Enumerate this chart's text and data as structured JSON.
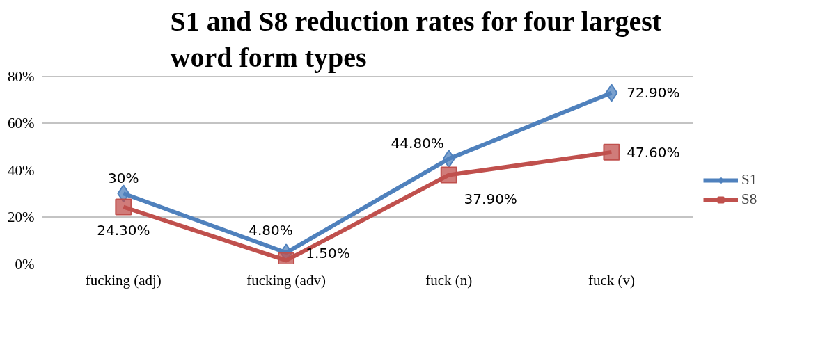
{
  "chart_data": {
    "type": "line",
    "title": "S1 and S8 reduction rates for four largest word form types",
    "categories": [
      "fucking (adj)",
      "fucking (adv)",
      "fuck (n)",
      "fuck (v)"
    ],
    "series": [
      {
        "name": "S1",
        "color": "#4f81bd",
        "marker": "diamond",
        "values": [
          30,
          4.8,
          44.8,
          72.9
        ],
        "value_labels": [
          "30%",
          "4.80%",
          "44.80%",
          "72.90%"
        ]
      },
      {
        "name": "S8",
        "color": "#c0504d",
        "marker": "square",
        "values": [
          24.3,
          1.5,
          37.9,
          47.6
        ],
        "value_labels": [
          "24.30%",
          "1.50%",
          "37.90%",
          "47.60%"
        ]
      }
    ],
    "ylim": [
      0,
      80
    ],
    "yticks": [
      {
        "value": 0,
        "label": "0%"
      },
      {
        "value": 20,
        "label": "20%"
      },
      {
        "value": 40,
        "label": "40%"
      },
      {
        "value": 60,
        "label": "60%"
      },
      {
        "value": 80,
        "label": "80%"
      }
    ],
    "grid": "y",
    "legend": "right"
  }
}
